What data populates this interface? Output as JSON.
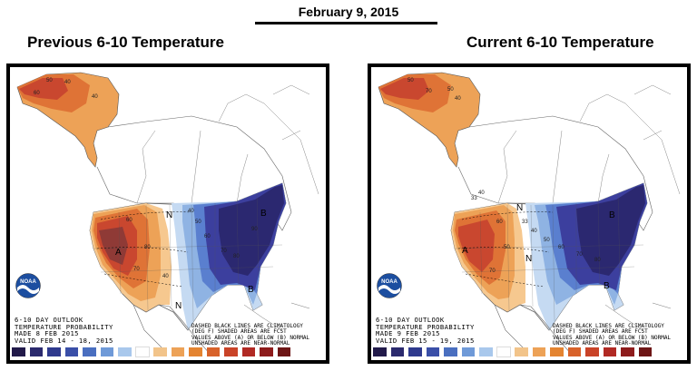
{
  "header": {
    "date": "February 9, 2015"
  },
  "panels": [
    {
      "title": "Previous 6-10 Temperature",
      "info": {
        "line1": "6-10 DAY OUTLOOK",
        "line2": "TEMPERATURE PROBABILITY",
        "line3": "MADE   8 FEB 2015",
        "line4": "VALID  FEB 14 - 18, 2015"
      },
      "region_labels": {
        "above": "A",
        "near": "N",
        "below": "B"
      }
    },
    {
      "title": "Current 6-10 Temperature",
      "info": {
        "line1": "6-10 DAY OUTLOOK",
        "line2": "TEMPERATURE PROBABILITY",
        "line3": "MADE   9 FEB 2015",
        "line4": "VALID  FEB 15 - 19, 2015"
      },
      "region_labels": {
        "above": "A",
        "near": "N",
        "below": "B"
      }
    }
  ],
  "legend_note": {
    "line1": "DASHED BLACK LINES ARE CLIMATOLOGY",
    "line2": "(DEG F) SHADED AREAS ARE FCST",
    "line3": "VALUES ABOVE (A) OR BELOW (B) NORMAL",
    "line4": "UNSHADED AREAS ARE NEAR-NORMAL"
  },
  "logo": {
    "text": "NOAA"
  },
  "colors": {
    "colorbar": [
      "#221a4a",
      "#2b2a6e",
      "#2f3a8e",
      "#3a4fa8",
      "#4a6fc0",
      "#6f9ad8",
      "#a9c8ec",
      "#ffffff",
      "#f2c48a",
      "#eda257",
      "#e48431",
      "#d8622a",
      "#c94328",
      "#b12a24",
      "#8e1c1c",
      "#6d1515"
    ],
    "cold_1": "#c5daf2",
    "cold_2": "#8fb3e3",
    "cold_3": "#5a7fcf",
    "cold_4": "#3c3f9e",
    "cold_5": "#2b2870",
    "warm_1": "#f6c88f",
    "warm_2": "#eda257",
    "warm_3": "#df7336",
    "warm_4": "#c9472f",
    "warm_5": "#8f3a36"
  }
}
